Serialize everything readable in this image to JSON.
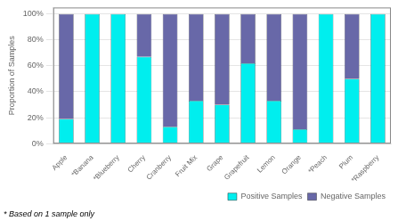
{
  "chart_data": {
    "type": "bar",
    "categories": [
      "Apple",
      "*Banana",
      "*Blueberry",
      "Cherry",
      "Cranberry",
      "Fruit Mix",
      "Grape",
      "Grapefruit",
      "Lemon",
      "Orange",
      "*Peach",
      "Plum",
      "*Raspberry"
    ],
    "series": [
      {
        "name": "Positive Samples",
        "color": "#00EEEE",
        "values": [
          0.19,
          1.0,
          1.0,
          0.67,
          0.13,
          0.33,
          0.3,
          0.62,
          0.33,
          0.11,
          1.0,
          0.5,
          1.0
        ]
      },
      {
        "name": "Negative Samples",
        "color": "#6868A8",
        "values": [
          0.81,
          0.0,
          0.0,
          0.33,
          0.87,
          0.67,
          0.7,
          0.38,
          0.67,
          0.89,
          0.0,
          0.5,
          0.0
        ]
      }
    ],
    "stacked": true,
    "ylabel": "Proportion of Samples",
    "ylim": [
      0,
      1.05
    ],
    "yticks": [
      {
        "value": 0.0,
        "label": "0%"
      },
      {
        "value": 0.2,
        "label": "20%"
      },
      {
        "value": 0.4,
        "label": "40%"
      },
      {
        "value": 0.6,
        "label": "60%"
      },
      {
        "value": 0.8,
        "label": "80%"
      },
      {
        "value": 1.0,
        "label": "100%"
      }
    ],
    "grid": true,
    "legend": "lower right",
    "annotations": [
      "* Based on 1 sample only"
    ]
  }
}
